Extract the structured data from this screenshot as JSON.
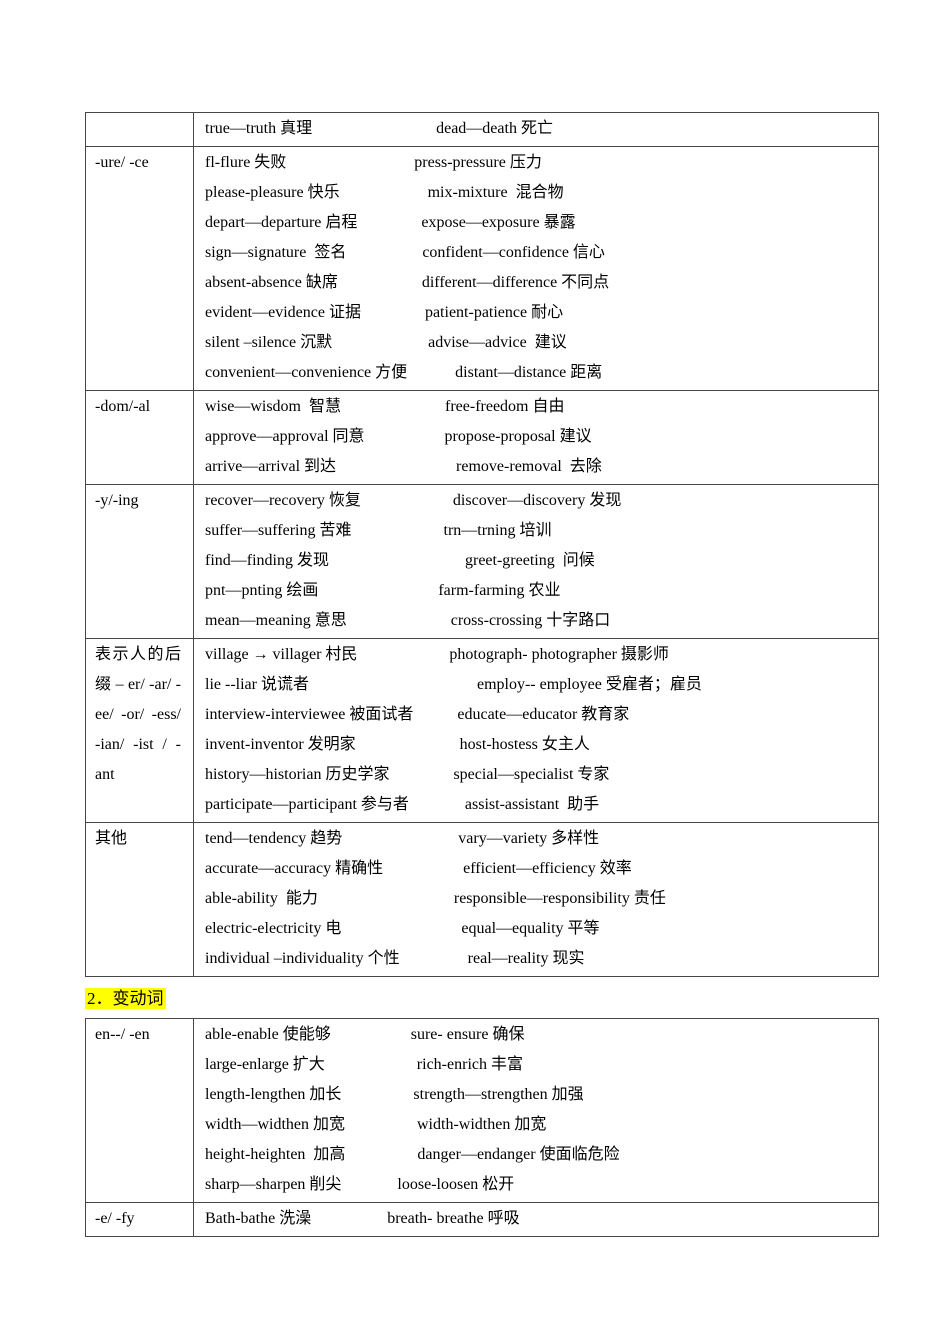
{
  "colors": {
    "page_background": "#ffffff",
    "table_border": "#474747",
    "heading_highlight": "#ffff00",
    "text": "#000000"
  },
  "heading2": {
    "text": "2．变动词"
  },
  "table1": {
    "rows": [
      {
        "label": "",
        "lines": [
          "true—truth 真理                               dead—death 死亡"
        ]
      },
      {
        "label": "-ure/ -ce",
        "lines": [
          "fl-flure 失败                                press-pressure 压力",
          "please-pleasure 快乐                      mix-mixture  混合物",
          "depart—departure 启程                expose—exposure 暴露",
          "sign—signature  签名                   confident—confidence 信心",
          "absent-absence 缺席                     different—difference 不同点",
          "evident—evidence 证据                patient-patience 耐心",
          "silent –silence 沉默                        advise—advice  建议",
          "convenient—convenience 方便            distant—distance 距离"
        ]
      },
      {
        "label": "-dom/-al",
        "lines": [
          "wise—wisdom  智慧                          free-freedom 自由",
          "approve—approval 同意                    propose-proposal 建议",
          "arrive—arrival 到达                              remove-removal  去除"
        ]
      },
      {
        "label": "-y/-ing",
        "lines": [
          "recover—recovery 恢复                       discover—discovery 发现",
          "suffer—suffering 苦难                       trn—trning 培训",
          "find—finding 发现                                  greet-greeting  问候",
          "pnt—pnting 绘画                              farm-farming 农业",
          "mean—meaning 意思                          cross-crossing 十字路口"
        ]
      },
      {
        "label": "表示人的后缀 – er/ -ar/ -ee/ -or/ -ess/ -ian/ -ist / -ant",
        "lines": [
          "village → villager 村民                       photograph- photographer 摄影师",
          "lie --liar 说谎者                                          employ-- employee 受雇者；雇员",
          "interview-interviewee 被面试者           educate—educator 教育家",
          "invent-inventor 发明家                          host-hostess 女主人",
          "history—historian 历史学家                special—specialist 专家",
          "participate—participant 参与者              assist-assistant  助手"
        ]
      },
      {
        "label": "其他",
        "lines": [
          "tend—tendency 趋势                             vary—variety 多样性",
          "accurate—accuracy 精确性                    efficient—efficiency 效率",
          "able-ability  能力                                  responsible—responsibility 责任",
          "electric-electricity 电                              equal—equality 平等",
          "individual –individuality 个性                 real—reality 现实"
        ]
      }
    ]
  },
  "table2": {
    "rows": [
      {
        "label": "en--/ -en",
        "lines": [
          "able-enable 使能够                    sure- ensure 确保",
          "large-enlarge 扩大                       rich-enrich 丰富",
          "length-lengthen 加长                  strength—strengthen 加强",
          "width—widthen 加宽                  width-widthen 加宽",
          "height-heighten  加高                  danger—endanger 使面临危险",
          "sharp—sharpen 削尖              loose-loosen 松开"
        ]
      },
      {
        "label": "-e/ -fy",
        "lines": [
          "Bath-bathe 洗澡                   breath- breathe 呼吸"
        ]
      }
    ]
  }
}
